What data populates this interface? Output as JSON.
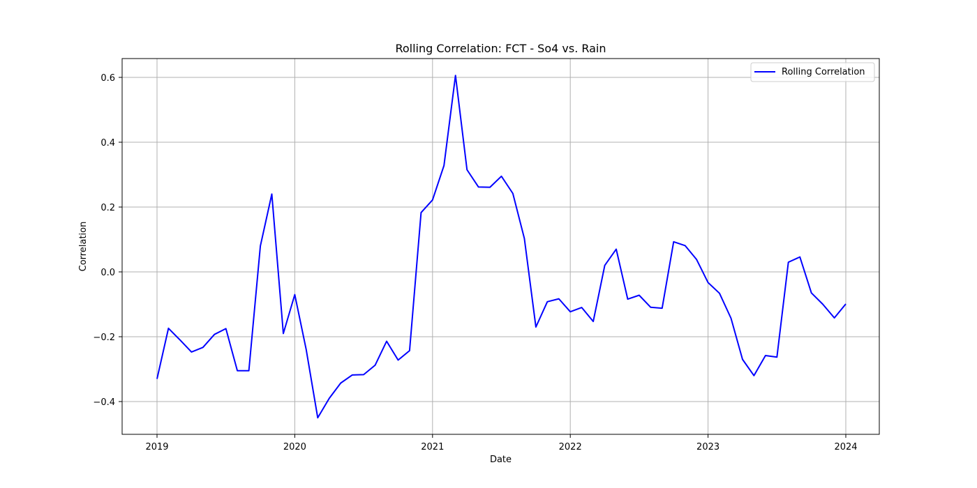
{
  "chart_data": {
    "type": "line",
    "title": "Rolling Correlation: FCT - So4 vs. Rain",
    "xlabel": "Date",
    "ylabel": "Correlation",
    "grid": true,
    "legend_position": "top-right",
    "x_ticks": [
      "2019",
      "2020",
      "2021",
      "2022",
      "2023",
      "2024"
    ],
    "y_ticks": [
      "−0.4",
      "−0.2",
      "0.0",
      "0.2",
      "0.4",
      "0.6"
    ],
    "ylim": [
      -0.5,
      0.66
    ],
    "xlim": [
      "2018-10-01",
      "2024-03-01"
    ],
    "series": [
      {
        "name": "Rolling Correlation",
        "color": "#0000ff",
        "x": [
          "2019-01",
          "2019-02",
          "2019-03",
          "2019-04",
          "2019-05",
          "2019-06",
          "2019-07",
          "2019-08",
          "2019-09",
          "2019-10",
          "2019-11",
          "2019-12",
          "2020-01",
          "2020-02",
          "2020-03",
          "2020-04",
          "2020-05",
          "2020-06",
          "2020-07",
          "2020-08",
          "2020-09",
          "2020-10",
          "2020-11",
          "2020-12",
          "2021-01",
          "2021-02",
          "2021-03",
          "2021-04",
          "2021-05",
          "2021-06",
          "2021-07",
          "2021-08",
          "2021-09",
          "2021-10",
          "2021-11",
          "2021-12",
          "2022-01",
          "2022-02",
          "2022-03",
          "2022-04",
          "2022-05",
          "2022-06",
          "2022-07",
          "2022-08",
          "2022-09",
          "2022-10",
          "2022-11",
          "2022-12",
          "2023-01",
          "2023-02",
          "2023-03",
          "2023-04",
          "2023-05",
          "2023-06",
          "2023-07",
          "2023-08",
          "2023-09",
          "2023-10",
          "2023-11",
          "2023-12",
          "2024-01"
        ],
        "values": [
          -0.33,
          -0.174,
          -0.21,
          -0.247,
          -0.233,
          -0.193,
          -0.175,
          -0.305,
          -0.305,
          0.08,
          0.24,
          -0.19,
          -0.07,
          -0.24,
          -0.45,
          -0.39,
          -0.343,
          -0.318,
          -0.317,
          -0.288,
          -0.214,
          -0.272,
          -0.243,
          0.183,
          0.222,
          0.328,
          0.606,
          0.315,
          0.262,
          0.261,
          0.295,
          0.242,
          0.103,
          -0.17,
          -0.092,
          -0.083,
          -0.123,
          -0.11,
          -0.153,
          0.02,
          0.07,
          -0.084,
          -0.072,
          -0.109,
          -0.112,
          0.093,
          0.081,
          0.038,
          -0.033,
          -0.066,
          -0.143,
          -0.27,
          -0.32,
          -0.258,
          -0.263,
          0.03,
          0.046,
          -0.065,
          -0.1,
          -0.142,
          -0.099
        ]
      }
    ]
  }
}
